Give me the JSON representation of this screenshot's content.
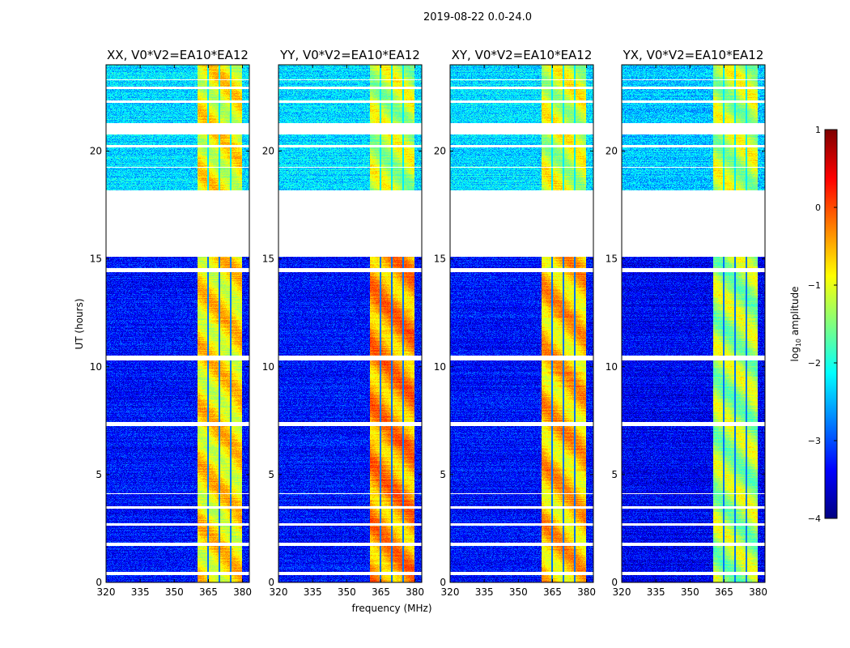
{
  "chart_data": {
    "type": "heatmap",
    "title": "2019-08-22 0.0-24.0",
    "xlabel": "frequency (MHz)",
    "ylabel": "UT (hours)",
    "xlim": [
      320,
      383
    ],
    "ylim": [
      0,
      24
    ],
    "xticks": [
      "320",
      "335",
      "350",
      "365",
      "380"
    ],
    "xtick_values": [
      320,
      335,
      350,
      365,
      380
    ],
    "yticks": [
      "0",
      "5",
      "10",
      "15",
      "20"
    ],
    "ytick_values": [
      0,
      5,
      10,
      15,
      20
    ],
    "panels": [
      {
        "title": "XX, V0*V2=EA10*EA12",
        "band_level_low_time": -0.8,
        "band_level_high_time": -0.9,
        "background_low_time": -3.3,
        "background_high_time": -2.3
      },
      {
        "title": "YY, V0*V2=EA10*EA12",
        "band_level_low_time": -0.4,
        "band_level_high_time": -1.2,
        "background_low_time": -3.3,
        "background_high_time": -2.3
      },
      {
        "title": "XY, V0*V2=EA10*EA12",
        "band_level_low_time": -0.6,
        "band_level_high_time": -1.1,
        "background_low_time": -3.3,
        "background_high_time": -2.3
      },
      {
        "title": "YX, V0*V2=EA10*EA12",
        "band_level_low_time": -1.3,
        "band_level_high_time": -1.2,
        "background_low_time": -3.4,
        "background_high_time": -2.4
      }
    ],
    "rfi_band_mhz": [
      360,
      379.5
    ],
    "channel_gaps_mhz": [
      364.6,
      369.6,
      374.6
    ],
    "flagged_hours": [
      [
        0.35,
        0.5
      ],
      [
        1.7,
        1.85
      ],
      [
        2.65,
        2.75
      ],
      [
        3.45,
        3.55
      ],
      [
        4.1,
        4.15
      ],
      [
        7.25,
        7.45
      ],
      [
        10.3,
        10.55
      ],
      [
        14.4,
        14.6
      ],
      [
        15.1,
        18.2
      ],
      [
        19.25,
        19.3
      ],
      [
        20.2,
        20.3
      ],
      [
        20.8,
        21.3
      ],
      [
        22.25,
        22.35
      ],
      [
        22.9,
        23.0
      ],
      [
        23.3,
        23.35
      ]
    ],
    "colorbar": {
      "label": "log10 amplitude",
      "label_base": "log",
      "label_sub": "10",
      "label_rest": " amplitude",
      "range": [
        -4,
        1
      ],
      "ticks": [
        "1",
        "0",
        "−1",
        "−2",
        "−3",
        "−4"
      ],
      "tick_values": [
        1,
        0,
        -1,
        -2,
        -3,
        -4
      ],
      "colormap": "jet"
    }
  }
}
